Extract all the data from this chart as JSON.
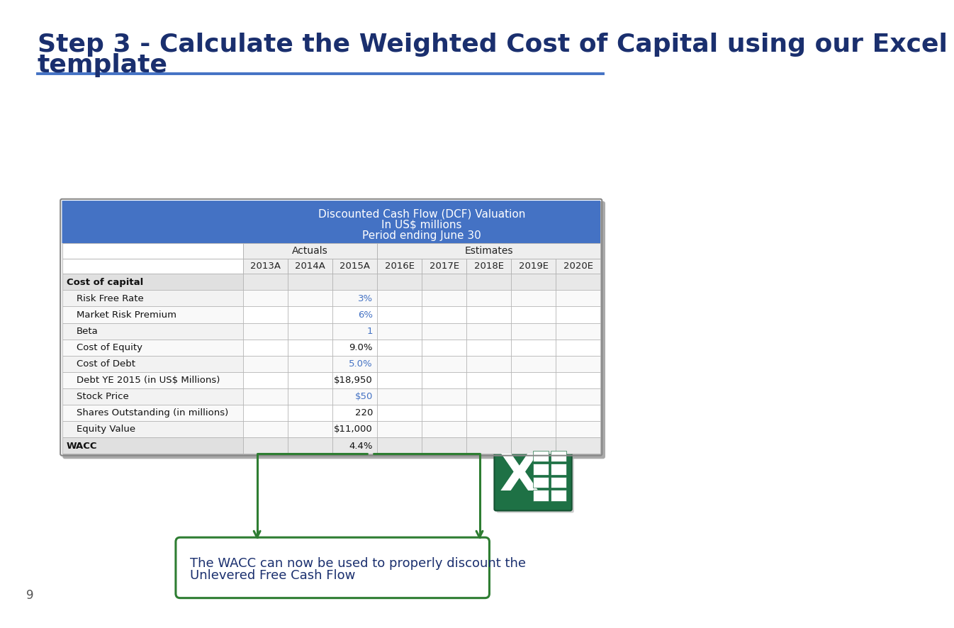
{
  "title_line1": "Step 3 - Calculate the Weighted Cost of Capital using our Excel",
  "title_line2": "template",
  "title_color": "#1a2f6e",
  "title_fontsize": 26,
  "bg_color": "#ffffff",
  "slide_number": "9",
  "table_header_bg": "#4472c4",
  "table_border_color": "#aaaaaa",
  "blue_text": "#4472c4",
  "dark_blue_text": "#1a2f6e",
  "black_text": "#222222",
  "header_title_line1": "Discounted Cash Flow (DCF) Valuation",
  "header_title_line2": "In US$ millions",
  "header_title_line3": "Period ending June 30",
  "actuals_label": "Actuals",
  "estimates_label": "Estimates",
  "col_headers": [
    "2013A",
    "2014A",
    "2015A",
    "2016E",
    "2017E",
    "2018E",
    "2019E",
    "2020E"
  ],
  "rows": [
    {
      "label": "Cost of capital",
      "bold": true,
      "indent": 0,
      "values": [
        "",
        "",
        "",
        "",
        "",
        "",
        "",
        ""
      ],
      "value_colors": [
        "k",
        "k",
        "k",
        "k",
        "k",
        "k",
        "k",
        "k"
      ]
    },
    {
      "label": "Risk Free Rate",
      "bold": false,
      "indent": 1,
      "values": [
        "",
        "",
        "3%",
        "",
        "",
        "",
        "",
        ""
      ],
      "value_colors": [
        "k",
        "k",
        "b",
        "k",
        "k",
        "k",
        "k",
        "k"
      ]
    },
    {
      "label": "Market Risk Premium",
      "bold": false,
      "indent": 1,
      "values": [
        "",
        "",
        "6%",
        "",
        "",
        "",
        "",
        ""
      ],
      "value_colors": [
        "k",
        "k",
        "b",
        "k",
        "k",
        "k",
        "k",
        "k"
      ]
    },
    {
      "label": "Beta",
      "bold": false,
      "indent": 1,
      "values": [
        "",
        "",
        "1",
        "",
        "",
        "",
        "",
        ""
      ],
      "value_colors": [
        "k",
        "k",
        "b",
        "k",
        "k",
        "k",
        "k",
        "k"
      ]
    },
    {
      "label": "Cost of Equity",
      "bold": false,
      "indent": 1,
      "values": [
        "",
        "",
        "9.0%",
        "",
        "",
        "",
        "",
        ""
      ],
      "value_colors": [
        "k",
        "k",
        "k",
        "k",
        "k",
        "k",
        "k",
        "k"
      ]
    },
    {
      "label": "Cost of Debt",
      "bold": false,
      "indent": 1,
      "values": [
        "",
        "",
        "5.0%",
        "",
        "",
        "",
        "",
        ""
      ],
      "value_colors": [
        "k",
        "k",
        "b",
        "k",
        "k",
        "k",
        "k",
        "k"
      ]
    },
    {
      "label": "Debt YE 2015 (in US$ Millions)",
      "bold": false,
      "indent": 1,
      "values": [
        "",
        "",
        "$18,950",
        "",
        "",
        "",
        "",
        ""
      ],
      "value_colors": [
        "k",
        "k",
        "k",
        "k",
        "k",
        "k",
        "k",
        "k"
      ]
    },
    {
      "label": "Stock Price",
      "bold": false,
      "indent": 1,
      "values": [
        "",
        "",
        "$50",
        "",
        "",
        "",
        "",
        ""
      ],
      "value_colors": [
        "k",
        "k",
        "b",
        "k",
        "k",
        "k",
        "k",
        "k"
      ]
    },
    {
      "label": "Shares Outstanding (in millions)",
      "bold": false,
      "indent": 1,
      "values": [
        "",
        "",
        "220",
        "",
        "",
        "",
        "",
        ""
      ],
      "value_colors": [
        "k",
        "k",
        "k",
        "k",
        "k",
        "k",
        "k",
        "k"
      ]
    },
    {
      "label": "Equity Value",
      "bold": false,
      "indent": 1,
      "values": [
        "",
        "",
        "$11,000",
        "",
        "",
        "",
        "",
        ""
      ],
      "value_colors": [
        "k",
        "k",
        "k",
        "k",
        "k",
        "k",
        "k",
        "k"
      ]
    },
    {
      "label": "WACC",
      "bold": true,
      "indent": 0,
      "values": [
        "",
        "",
        "4.4%",
        "",
        "",
        "",
        "",
        ""
      ],
      "value_colors": [
        "k",
        "k",
        "k",
        "k",
        "k",
        "k",
        "k",
        "k"
      ]
    }
  ],
  "annotation_text_line1": "The WACC can now be used to properly discount the",
  "annotation_text_line2": "Unlevered Free Cash Flow",
  "annotation_color": "#1a2f6e",
  "annotation_border_color": "#2e7d32",
  "arrow_color": "#2e7d32"
}
